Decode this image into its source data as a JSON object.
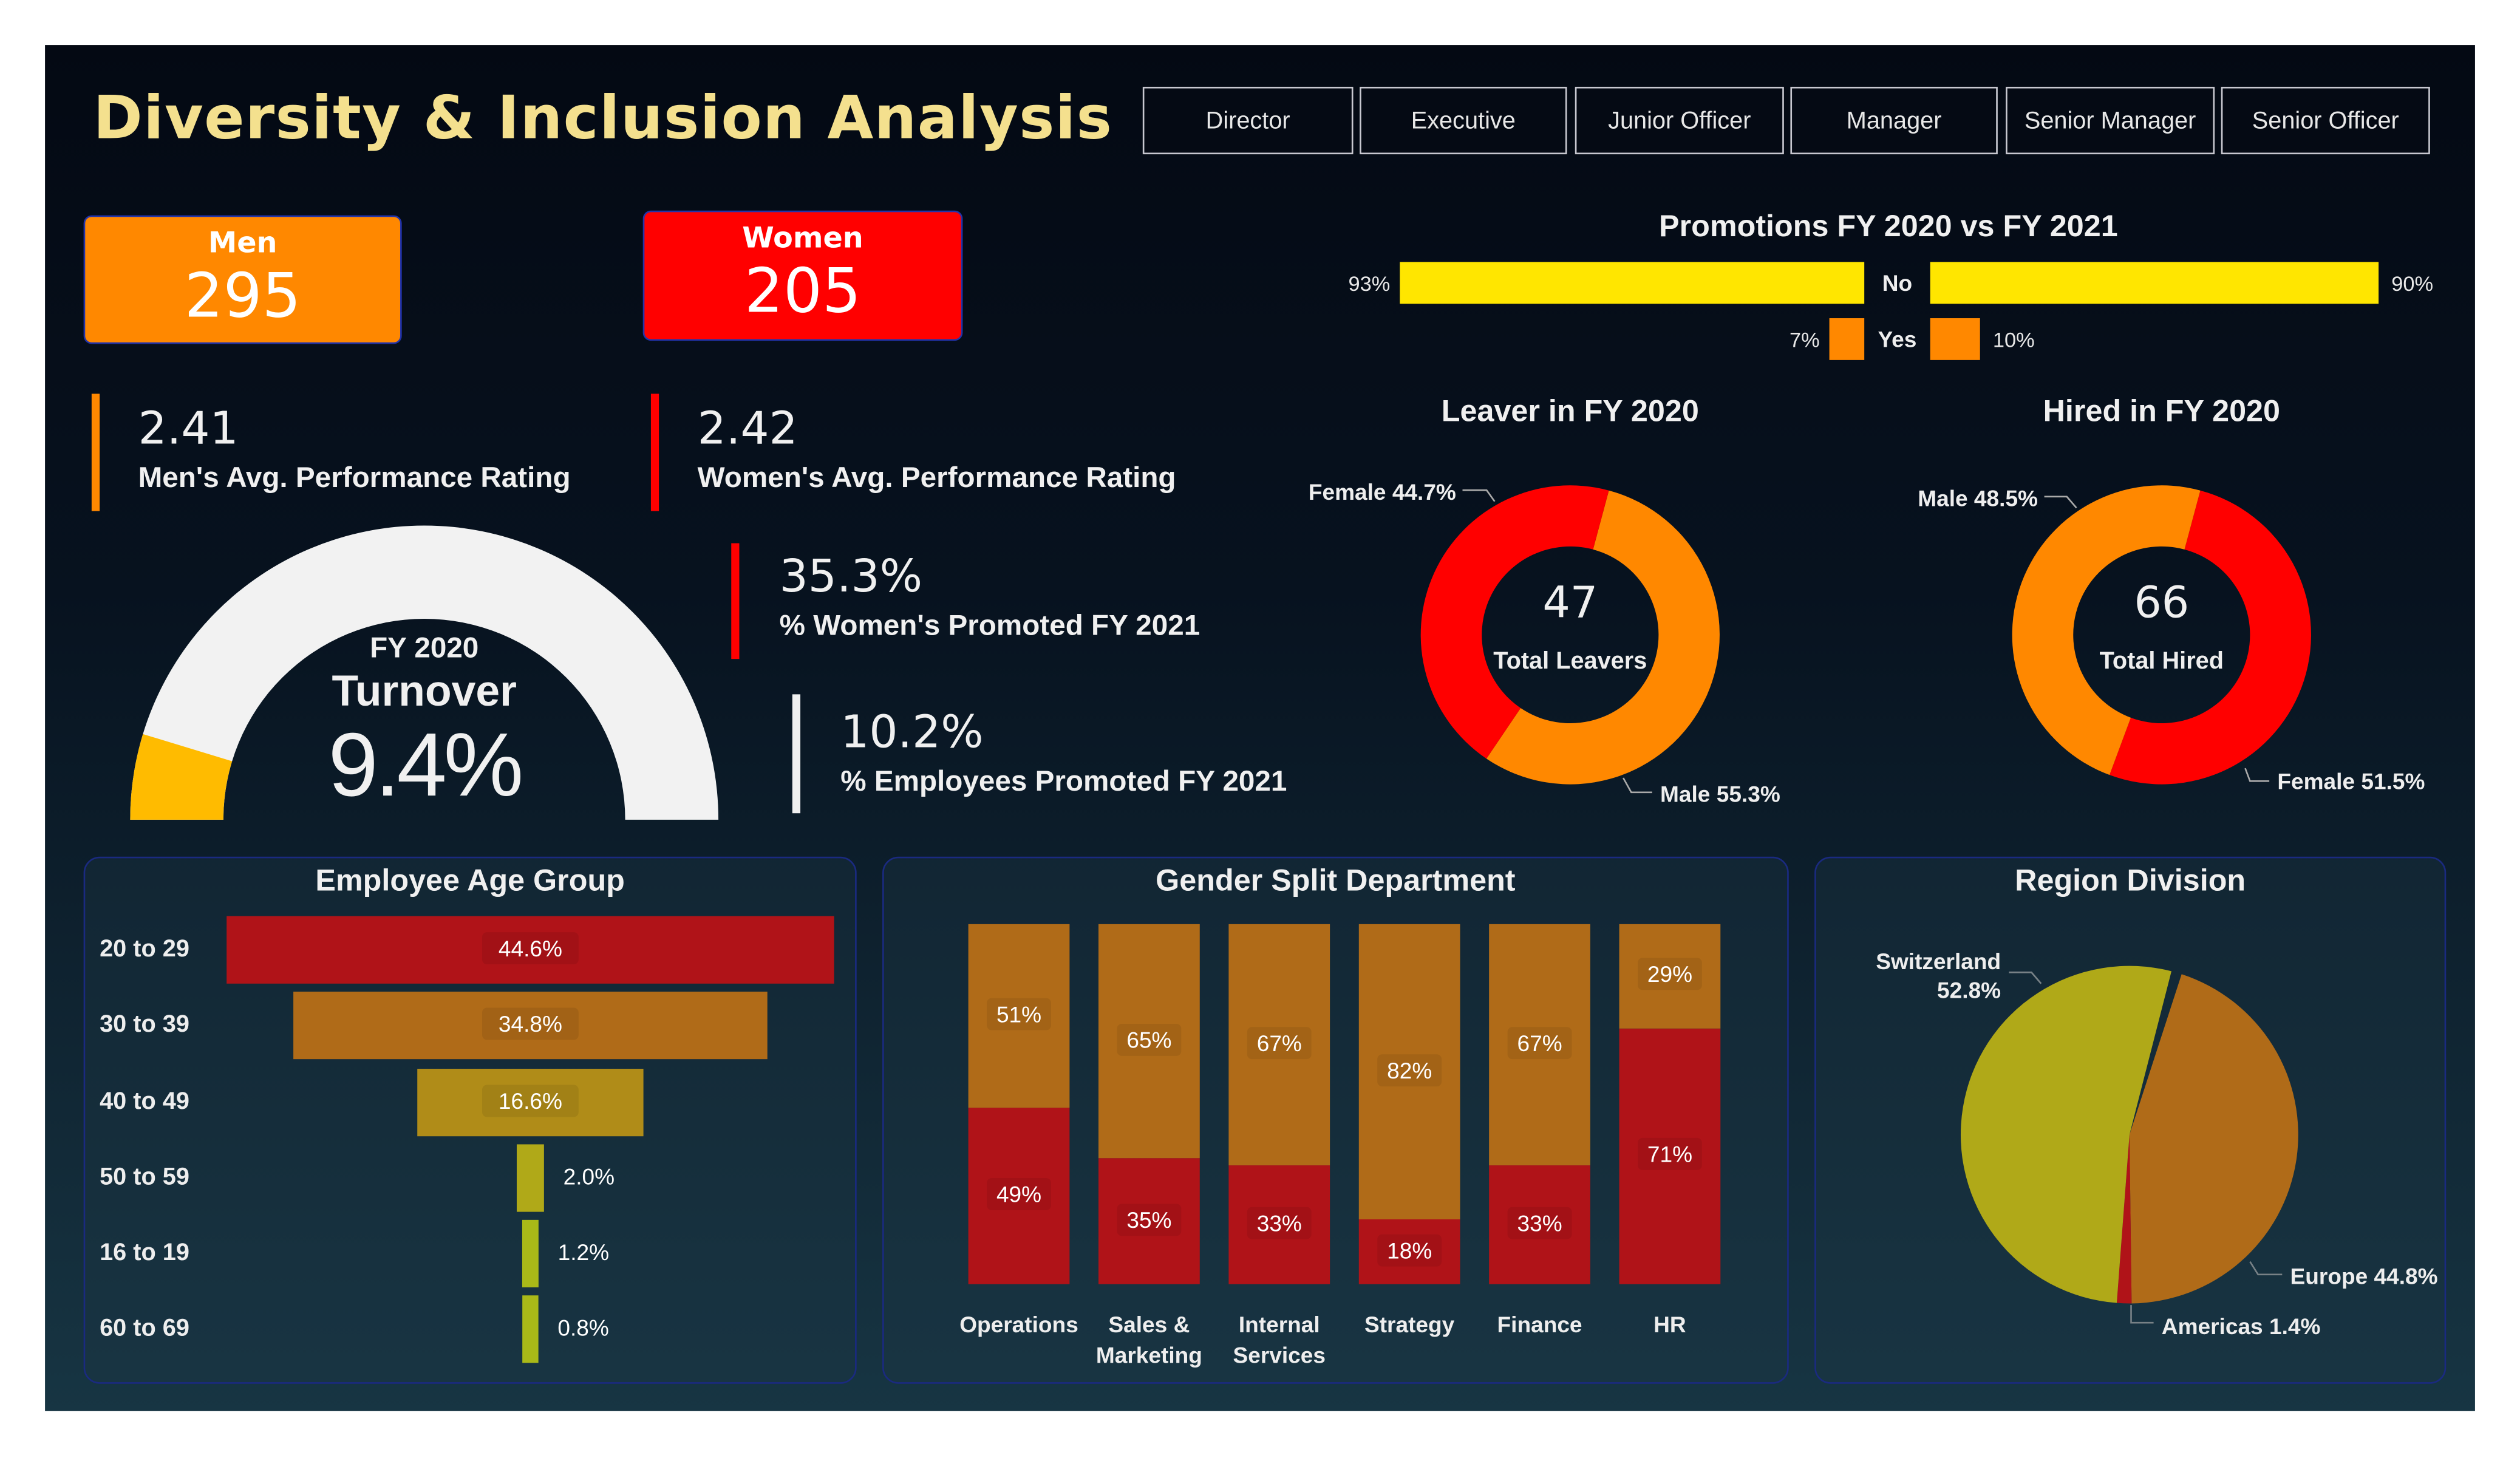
{
  "title": "Diversity & Inclusion Analysis",
  "filters": [
    "Director",
    "Executive",
    "Junior Officer",
    "Manager",
    "Senior Manager",
    "Senior Officer"
  ],
  "cards": {
    "men": {
      "label": "Men",
      "value": "295",
      "color": "#ff8800"
    },
    "women": {
      "label": "Women",
      "value": "205",
      "color": "#ff0000"
    }
  },
  "kpis": {
    "men_rating": {
      "value": "2.41",
      "label": "Men's Avg. Performance Rating"
    },
    "women_rating": {
      "value": "2.42",
      "label": "Women's Avg. Performance Rating"
    },
    "women_promoted": {
      "value": "35.3%",
      "label": "% Women's Promoted FY 2021"
    },
    "employees_promoted": {
      "value": "10.2%",
      "label": "% Employees Promoted FY 2021"
    }
  },
  "gauge": {
    "line1": "FY 2020",
    "line2": "Turnover",
    "value": "9.4%",
    "percent": 9.4
  },
  "chart_data": [
    {
      "type": "bar",
      "title": "Promotions FY 2020 vs FY 2021",
      "categories": [
        "No",
        "Yes"
      ],
      "series": [
        {
          "values": [
            93,
            7
          ],
          "labels": [
            "93%",
            "7%"
          ]
        },
        {
          "values": [
            90,
            10
          ],
          "labels": [
            "90%",
            "10%"
          ]
        }
      ],
      "colors": [
        "#ffe600",
        "#ff8800"
      ]
    },
    {
      "type": "pie",
      "title": "Leaver in FY 2020",
      "center_value": "47",
      "center_label": "Total Leavers",
      "slices": [
        {
          "name": "Male",
          "value": 55.3,
          "label": "Male 55.3%",
          "color": "#ff8800"
        },
        {
          "name": "Female",
          "value": 44.7,
          "label": "Female 44.7%",
          "color": "#ff0000"
        }
      ]
    },
    {
      "type": "pie",
      "title": "Hired in FY 2020",
      "center_value": "66",
      "center_label": "Total Hired",
      "slices": [
        {
          "name": "Female",
          "value": 51.5,
          "label": "Female 51.5%",
          "color": "#ff0000"
        },
        {
          "name": "Male",
          "value": 48.5,
          "label": "Male 48.5%",
          "color": "#ff8800"
        }
      ]
    },
    {
      "type": "bar",
      "title": "Employee Age Group",
      "categories": [
        "20 to 29",
        "30 to 39",
        "40 to 49",
        "50 to 59",
        "16 to 19",
        "60 to 69"
      ],
      "values": [
        44.6,
        34.8,
        16.6,
        2.0,
        1.2,
        0.8
      ],
      "labels": [
        "44.6%",
        "34.8%",
        "16.6%",
        "2.0%",
        "1.2%",
        "0.8%"
      ],
      "colors": [
        "#ff0000",
        "#ff8800",
        "#ffbb00",
        "#ffe600",
        "#f5ff00",
        "#f5ff00"
      ]
    },
    {
      "type": "bar",
      "title": "Gender Split Department",
      "categories": [
        "Operations",
        "Sales & Marketing",
        "Internal Services",
        "Strategy",
        "Finance",
        "HR"
      ],
      "series": [
        {
          "values": [
            49,
            35,
            33,
            18,
            33,
            71
          ],
          "labels": [
            "49%",
            "35%",
            "33%",
            "18%",
            "33%",
            "71%"
          ],
          "color": "#ff0000"
        },
        {
          "values": [
            51,
            65,
            67,
            82,
            67,
            29
          ],
          "labels": [
            "51%",
            "65%",
            "67%",
            "82%",
            "67%",
            "29%"
          ],
          "color": "#ff8800"
        }
      ]
    },
    {
      "type": "pie",
      "title": "Region Division",
      "slices": [
        {
          "name": "Europe",
          "value": 44.8,
          "label": "Europe 44.8%",
          "color": "#ff8800"
        },
        {
          "name": "Americas",
          "value": 1.4,
          "label": "Americas 1.4%",
          "color": "#ff0000"
        },
        {
          "name": "Switzerland",
          "value": 52.8,
          "label": "Switzerland 52.8%",
          "color": "#ffe600"
        }
      ]
    }
  ]
}
